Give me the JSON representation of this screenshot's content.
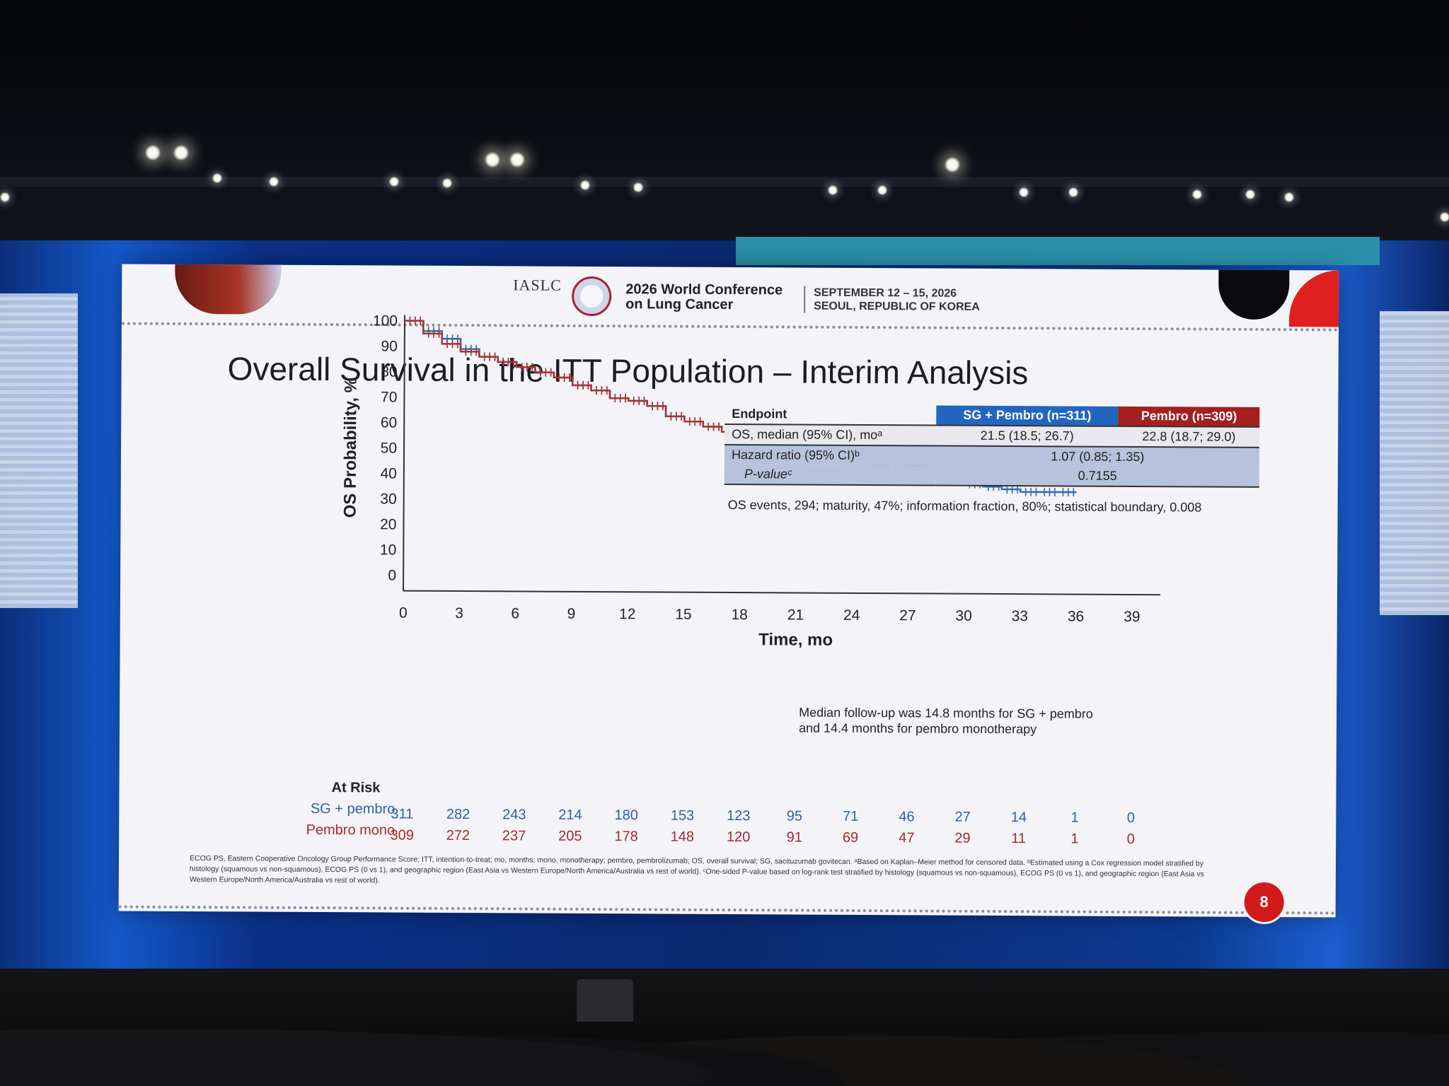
{
  "header": {
    "org": "IASLC",
    "conference_title": "2026 World Conference on Lung Cancer",
    "dates": "SEPTEMBER 12 – 15, 2026",
    "location": "SEOUL, REPUBLIC OF KOREA"
  },
  "slide_title": "Overall  Survival in the ITT Population – Interim Analysis",
  "table": {
    "header": [
      "Endpoint",
      "SG + Pembro (n=311)",
      "Pembro (n=309)"
    ],
    "os_label": "OS, median (95% CI), moᵃ",
    "os_sg": "21.5 (18.5; 26.7)",
    "os_pembro": "22.8 (18.7; 29.0)",
    "hr_label": "Hazard ratio (95% CI)ᵇ",
    "hr_value": "1.07 (0.85; 1.35)",
    "p_label": "P-valueᶜ",
    "p_value": "0.7155"
  },
  "os_events": "OS events, 294; maturity, 47%; information fraction, 80%; statistical boundary, 0.008",
  "followup_note": "Median follow-up was 14.8 months for SG + pembro and 14.4 months for pembro monotherapy",
  "at_risk": {
    "title": "At Risk",
    "rows": [
      {
        "label": "SG + pembro",
        "color": "#2a5fb0",
        "values": [
          "311",
          "282",
          "243",
          "214",
          "180",
          "153",
          "123",
          "95",
          "71",
          "46",
          "27",
          "14",
          "1",
          "0"
        ]
      },
      {
        "label": "Pembro mono",
        "color": "#a52a2a",
        "values": [
          "309",
          "272",
          "237",
          "205",
          "178",
          "148",
          "120",
          "91",
          "69",
          "47",
          "29",
          "11",
          "1",
          "0"
        ]
      }
    ]
  },
  "footnote": "ECOG PS, Eastern Cooperative Oncology Group Performance Score; ITT, intention-to-treat; mo, months; mono, monotherapy; pembro, pembrolizumab; OS, overall survival; SG, sacituzumab govitecan. ᵃBased on Kaplan–Meier method for censored data. ᵇEstimated using a Cox regression model stratified by histology (squamous vs non-squamous), ECOG PS (0 vs 1), and geographic region (East Asia vs Western Europe/North America/Australia vs rest of world). ᶜOne-sided P-value based on log-rank test stratified by histology (squamous vs non-squamous), ECOG PS (0 vs 1), and geographic region (East Asia vs Western Europe/North America/Australia vs rest of world).",
  "page_number": "8",
  "chart_data": {
    "type": "line",
    "title": "",
    "xlabel": "Time, mo",
    "ylabel": "OS Probability, %",
    "xlim": [
      0,
      39
    ],
    "ylim": [
      0,
      100
    ],
    "x_ticks": [
      0,
      3,
      6,
      9,
      12,
      15,
      18,
      21,
      24,
      27,
      30,
      33,
      36,
      39
    ],
    "y_ticks": [
      0,
      10,
      20,
      30,
      40,
      50,
      60,
      70,
      80,
      90,
      100
    ],
    "series": [
      {
        "name": "SG + Pembro",
        "color": "#2f6bb8",
        "x": [
          0,
          1,
          2,
          3,
          4,
          5,
          6,
          7,
          8,
          9,
          10,
          11,
          12,
          13,
          14,
          15,
          16,
          17,
          18,
          19,
          20,
          21,
          22,
          23,
          24,
          25,
          26,
          27,
          28,
          29,
          30,
          31,
          32,
          33,
          34,
          35,
          36
        ],
        "y": [
          100,
          96,
          93,
          89,
          86,
          84,
          82,
          80,
          78,
          75,
          73,
          70,
          69,
          67,
          63,
          61,
          59,
          57,
          56,
          54,
          52,
          50,
          49,
          47,
          46,
          44,
          42,
          41,
          40,
          39,
          37,
          36,
          35,
          34,
          34,
          34,
          34
        ]
      },
      {
        "name": "Pembro",
        "color": "#a83232",
        "x": [
          0,
          1,
          2,
          3,
          4,
          5,
          6,
          7,
          8,
          9,
          10,
          11,
          12,
          13,
          14,
          15,
          16,
          17,
          18,
          19,
          20,
          21,
          22,
          23,
          24,
          25,
          26,
          27,
          28,
          29,
          30,
          31,
          32,
          33,
          34,
          35,
          36
        ],
        "y": [
          100,
          95,
          91,
          88,
          86,
          84,
          82,
          80,
          78,
          75,
          73,
          70,
          69,
          67,
          63,
          61,
          59,
          57,
          56,
          54,
          52,
          51,
          49,
          48,
          47,
          46,
          45,
          44,
          43,
          42,
          41,
          41,
          41,
          41,
          41,
          41,
          41
        ]
      }
    ],
    "grid": false,
    "legend": "none"
  }
}
